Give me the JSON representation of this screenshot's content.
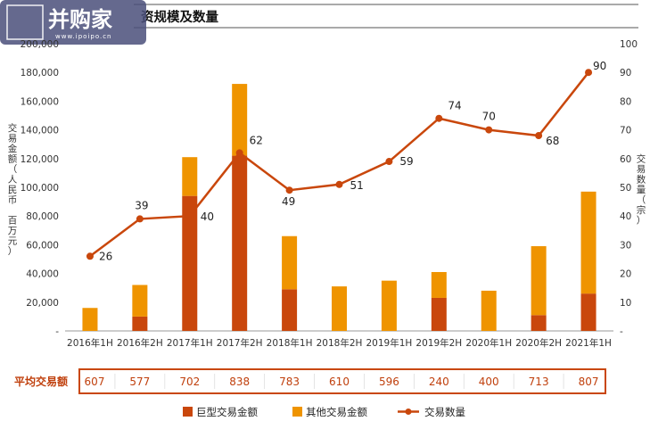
{
  "header": {
    "logo_text": "并购家",
    "logo_url_text": "www.ipoipo.cn",
    "title_visible": "资规模及数量"
  },
  "chart_data": {
    "type": "bar",
    "categories": [
      "2016年1H",
      "2016年2H",
      "2017年1H",
      "2017年2H",
      "2018年1H",
      "2018年2H",
      "2019年1H",
      "2019年2H",
      "2020年1H",
      "2020年2H",
      "2021年1H"
    ],
    "series": [
      {
        "name": "巨型交易金额",
        "type": "bar",
        "stack": "amount",
        "color": "#c9470c",
        "values": [
          0,
          10000,
          94000,
          122000,
          29000,
          0,
          0,
          23000,
          0,
          11000,
          26000
        ]
      },
      {
        "name": "其他交易金额",
        "type": "bar",
        "stack": "amount",
        "color": "#ef9400",
        "values": [
          16000,
          22000,
          27000,
          50000,
          37000,
          31000,
          35000,
          18000,
          28000,
          48000,
          71000
        ]
      },
      {
        "name": "交易数量",
        "type": "line",
        "axis": "right",
        "color": "#c9470c",
        "values": [
          26,
          39,
          40,
          62,
          49,
          51,
          59,
          74,
          70,
          68,
          90
        ]
      }
    ],
    "y_left": {
      "label": "交易金额（人民币 百万元）",
      "range": [
        0,
        200000
      ],
      "ticks": [
        "-",
        "20,000",
        "40,000",
        "60,000",
        "80,000",
        "100,000",
        "120,000",
        "140,000",
        "160,000",
        "180,000",
        "200,000"
      ]
    },
    "y_right": {
      "label": "交易数量（宗）",
      "range": [
        0,
        100
      ],
      "ticks": [
        "-",
        "10",
        "20",
        "30",
        "40",
        "50",
        "60",
        "70",
        "80",
        "90",
        "100"
      ]
    },
    "avg_row": {
      "label": "平均交易额",
      "values": [
        "607",
        "577",
        "702",
        "838",
        "783",
        "610",
        "596",
        "240",
        "400",
        "713",
        "807"
      ]
    },
    "legend_position": "bottom",
    "grid": false
  }
}
